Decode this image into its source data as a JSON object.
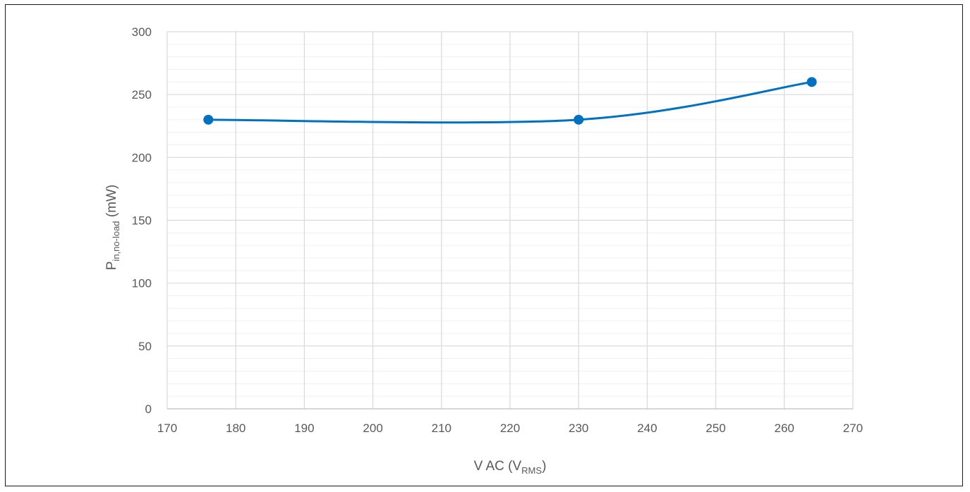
{
  "chart_data": {
    "type": "line",
    "title": "",
    "xlabel": {
      "main": "V AC (V",
      "sub": "RMS",
      "end": ")"
    },
    "ylabel": {
      "main": "P",
      "sub": "in,no-load",
      "end": " (mW)"
    },
    "xlim": [
      170,
      270
    ],
    "ylim": [
      0,
      300
    ],
    "x_ticks": [
      170,
      180,
      190,
      200,
      210,
      220,
      230,
      240,
      250,
      260,
      270
    ],
    "y_ticks": [
      0,
      50,
      100,
      150,
      200,
      250,
      300
    ],
    "y_minor_step": 10,
    "grid": true,
    "smooth": true,
    "series": [
      {
        "color": "#0070c0",
        "points": [
          {
            "x": 176,
            "y": 230
          },
          {
            "x": 230,
            "y": 230
          },
          {
            "x": 264,
            "y": 260
          }
        ]
      }
    ]
  }
}
